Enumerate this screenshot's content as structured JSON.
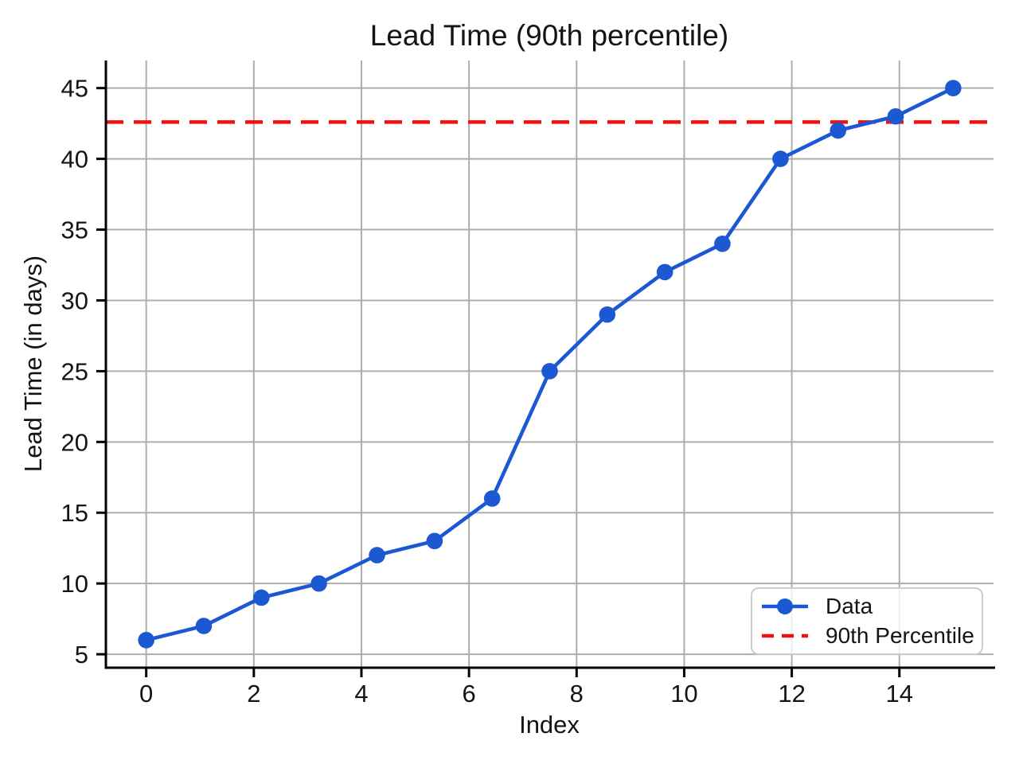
{
  "chart_data": {
    "type": "line",
    "title": "Lead Time (90th percentile)",
    "xlabel": "Index",
    "ylabel": "Lead Time (in days)",
    "series": [
      {
        "name": "Data",
        "x": [
          0,
          1.07,
          2.14,
          3.21,
          4.29,
          5.36,
          6.43,
          7.5,
          8.57,
          9.64,
          10.71,
          11.79,
          12.86,
          13.93,
          15
        ],
        "y": [
          6,
          7,
          9,
          10,
          12,
          13,
          16,
          25,
          29,
          32,
          34,
          40,
          42,
          43,
          45
        ],
        "color": "#1b58d2",
        "marker": "circle",
        "line_style": "solid"
      }
    ],
    "reference_lines": [
      {
        "name": "90th Percentile",
        "value": 42.6,
        "color": "#f01010",
        "line_style": "dashed"
      }
    ],
    "xticks": [
      0,
      2,
      4,
      6,
      8,
      10,
      12,
      14
    ],
    "yticks": [
      5,
      10,
      15,
      20,
      25,
      30,
      35,
      40,
      45
    ],
    "xlim": [
      -0.75,
      15.75
    ],
    "ylim": [
      4.05,
      46.95
    ],
    "grid": true,
    "legend_position": "lower right"
  },
  "colors": {
    "grid": "#adadad",
    "spine": "#000000",
    "text": "#141414",
    "background": "#ffffff"
  }
}
